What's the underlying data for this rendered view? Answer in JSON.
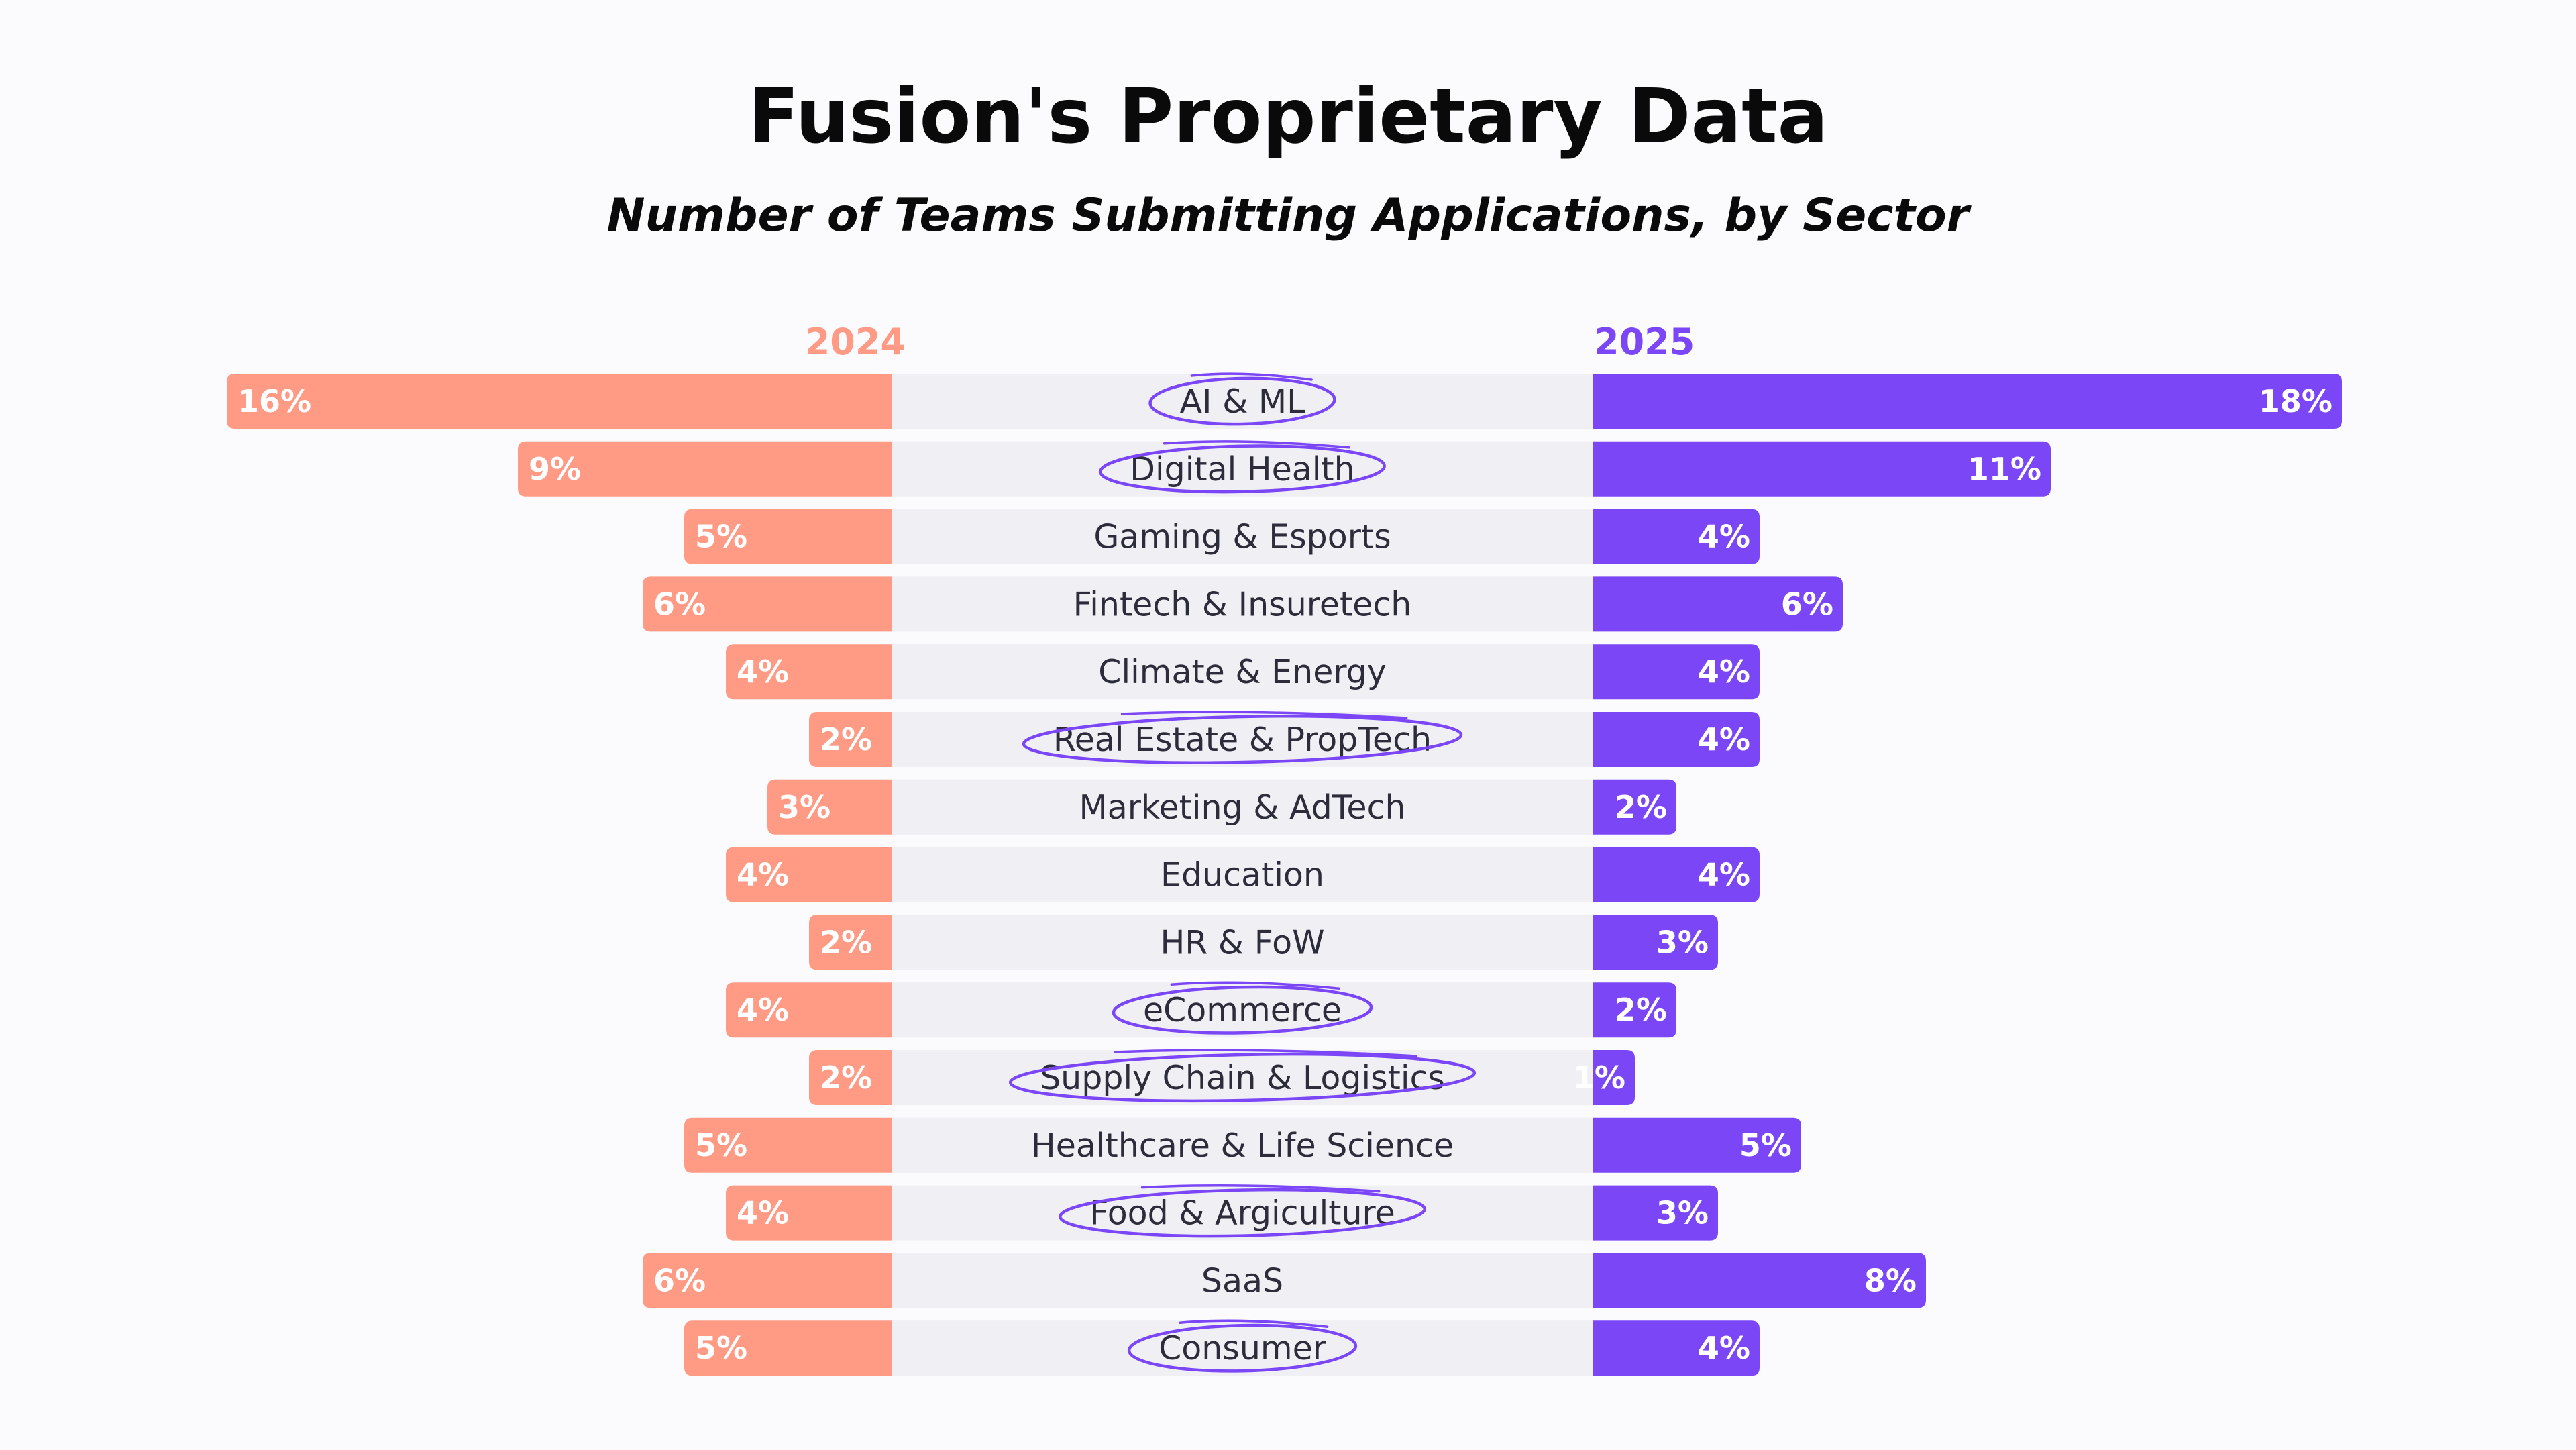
{
  "header": {
    "title": "Fusion's Proprietary Data",
    "subtitle": "Number of Teams Submitting Applications, by Sector"
  },
  "colors": {
    "series_2024": "#ff9a85",
    "series_2025": "#7b46f6",
    "band": "#f0f0f4",
    "highlight_circle": "#7b46f6"
  },
  "chart_data": {
    "type": "bar",
    "orientation": "horizontal-butterfly",
    "title": "Fusion's Proprietary Data",
    "subtitle": "Number of Teams Submitting Applications, by Sector",
    "unit": "%",
    "categories": [
      "AI & ML",
      "Digital Health",
      "Gaming & Esports",
      "Fintech & Insuretech",
      "Climate & Energy",
      "Real Estate & PropTech",
      "Marketing & AdTech",
      "Education",
      "HR & FoW",
      "eCommerce",
      "Supply Chain & Logistics",
      "Healthcare & Life Science",
      "Food & Argiculture",
      "SaaS",
      "Consumer"
    ],
    "series": [
      {
        "name": "2024",
        "values": [
          16,
          9,
          5,
          6,
          4,
          2,
          3,
          4,
          2,
          4,
          2,
          5,
          4,
          6,
          5
        ],
        "labels": [
          "16%",
          "9%",
          "5%",
          "6%",
          "4%",
          "2%",
          "3%",
          "4%",
          "2%",
          "4%",
          "2%",
          "5%",
          "4%",
          "6%",
          "5%"
        ]
      },
      {
        "name": "2025",
        "values": [
          18,
          11,
          4,
          6,
          4,
          4,
          2,
          4,
          3,
          2,
          1,
          5,
          3,
          8,
          4
        ],
        "labels": [
          "18%",
          "11%",
          "4%",
          "6%",
          "4%",
          "4%",
          "2%",
          "4%",
          "3%",
          "2%",
          "1%",
          "5%",
          "3%",
          "8%",
          "4%"
        ]
      }
    ],
    "highlighted_categories": [
      "AI & ML",
      "Digital Health",
      "Real Estate & PropTech",
      "eCommerce",
      "Supply Chain & Logistics",
      "Food & Argiculture",
      "Consumer"
    ],
    "legend": "column headers above each side",
    "grid": false
  }
}
